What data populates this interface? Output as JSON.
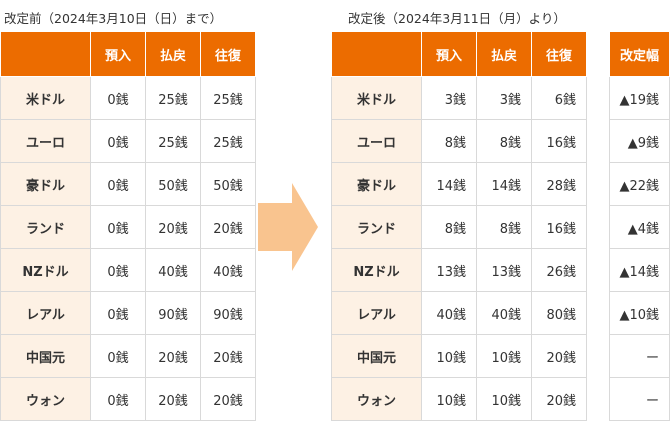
{
  "before": {
    "caption": "改定前（2024年3月10日（日）まで）",
    "headers": [
      "",
      "預入",
      "払戻",
      "往復"
    ],
    "rows": [
      {
        "currency": "米ドル",
        "deposit": "0銭",
        "withdraw": "25銭",
        "round": "25銭"
      },
      {
        "currency": "ユーロ",
        "deposit": "0銭",
        "withdraw": "25銭",
        "round": "25銭"
      },
      {
        "currency": "豪ドル",
        "deposit": "0銭",
        "withdraw": "50銭",
        "round": "50銭"
      },
      {
        "currency": "ランド",
        "deposit": "0銭",
        "withdraw": "20銭",
        "round": "20銭"
      },
      {
        "currency": "NZドル",
        "deposit": "0銭",
        "withdraw": "40銭",
        "round": "40銭"
      },
      {
        "currency": "レアル",
        "deposit": "0銭",
        "withdraw": "90銭",
        "round": "90銭"
      },
      {
        "currency": "中国元",
        "deposit": "0銭",
        "withdraw": "20銭",
        "round": "20銭"
      },
      {
        "currency": "ウォン",
        "deposit": "0銭",
        "withdraw": "20銭",
        "round": "20銭"
      }
    ]
  },
  "after": {
    "caption": "改定後（2024年3月11日（月）より）",
    "headers": [
      "",
      "預入",
      "払戻",
      "往復"
    ],
    "rows": [
      {
        "currency": "米ドル",
        "deposit": "3銭",
        "withdraw": "3銭",
        "round": "6銭"
      },
      {
        "currency": "ユーロ",
        "deposit": "8銭",
        "withdraw": "8銭",
        "round": "16銭"
      },
      {
        "currency": "豪ドル",
        "deposit": "14銭",
        "withdraw": "14銭",
        "round": "28銭"
      },
      {
        "currency": "ランド",
        "deposit": "8銭",
        "withdraw": "8銭",
        "round": "16銭"
      },
      {
        "currency": "NZドル",
        "deposit": "13銭",
        "withdraw": "13銭",
        "round": "26銭"
      },
      {
        "currency": "レアル",
        "deposit": "40銭",
        "withdraw": "40銭",
        "round": "80銭"
      },
      {
        "currency": "中国元",
        "deposit": "10銭",
        "withdraw": "10銭",
        "round": "20銭"
      },
      {
        "currency": "ウォン",
        "deposit": "10銭",
        "withdraw": "10銭",
        "round": "20銭"
      }
    ]
  },
  "change": {
    "header": "改定幅",
    "values": [
      "▲19銭",
      "▲9銭",
      "▲22銭",
      "▲4銭",
      "▲14銭",
      "▲10銭",
      "ー",
      "ー"
    ]
  },
  "colors": {
    "header_bg": "#ec6c00",
    "currency_bg": "#fdf1e4",
    "arrow": "#f9c48f",
    "border": "#d9d9d9"
  },
  "icons": {
    "transition_arrow": "arrow-right-icon"
  }
}
